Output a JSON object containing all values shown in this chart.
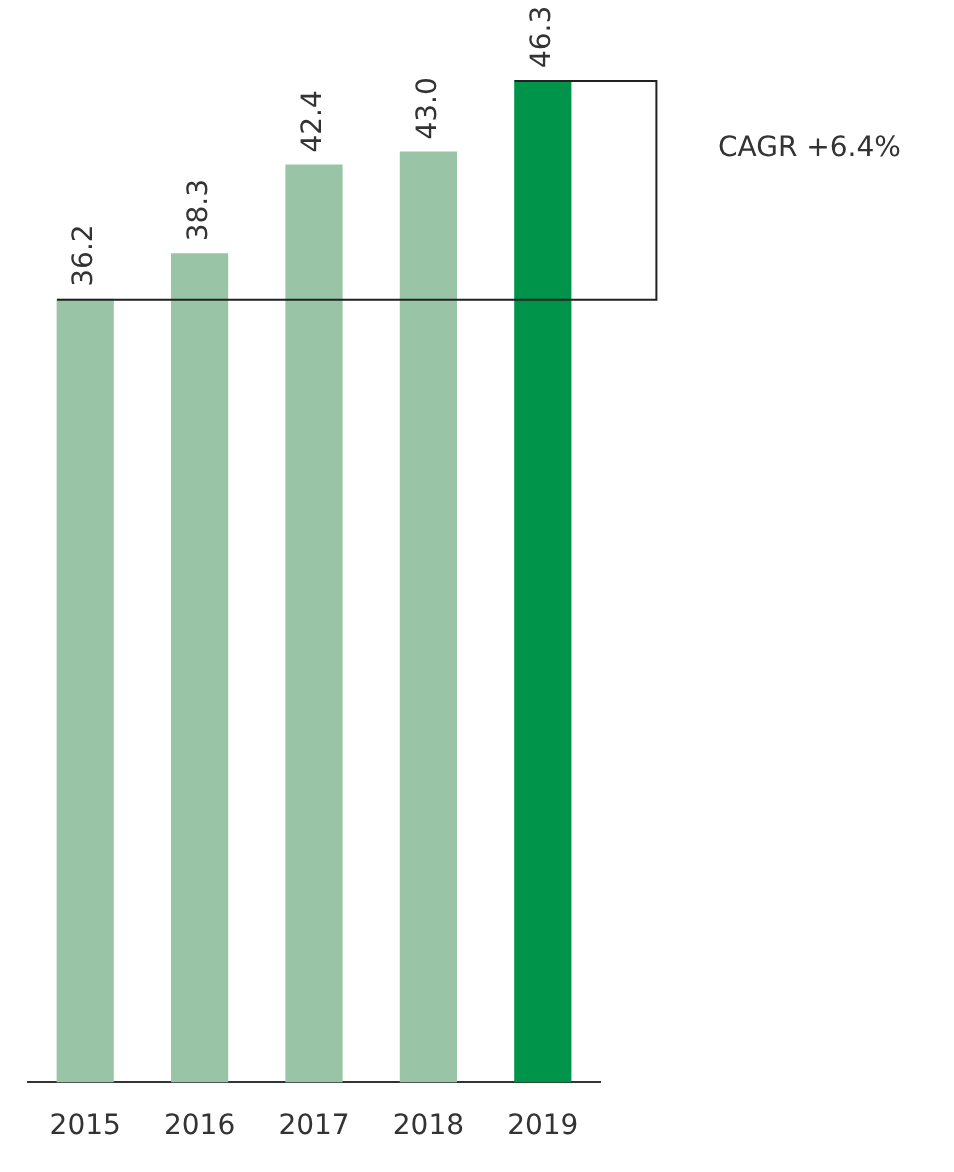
{
  "chart_data": {
    "type": "bar",
    "categories": [
      "2015",
      "2016",
      "2017",
      "2018",
      "2019"
    ],
    "values": [
      36.2,
      38.3,
      42.4,
      43.0,
      46.3
    ],
    "colors": [
      "#99c5a6",
      "#99c5a6",
      "#99c5a6",
      "#99c5a6",
      "#00944a"
    ],
    "value_labels": [
      "36.2",
      "38.3",
      "42.4",
      "43.0",
      "46.3"
    ],
    "tick_labels": "x",
    "grid": false,
    "legend": false,
    "annotations": [
      "CAGR +6.4%"
    ]
  }
}
